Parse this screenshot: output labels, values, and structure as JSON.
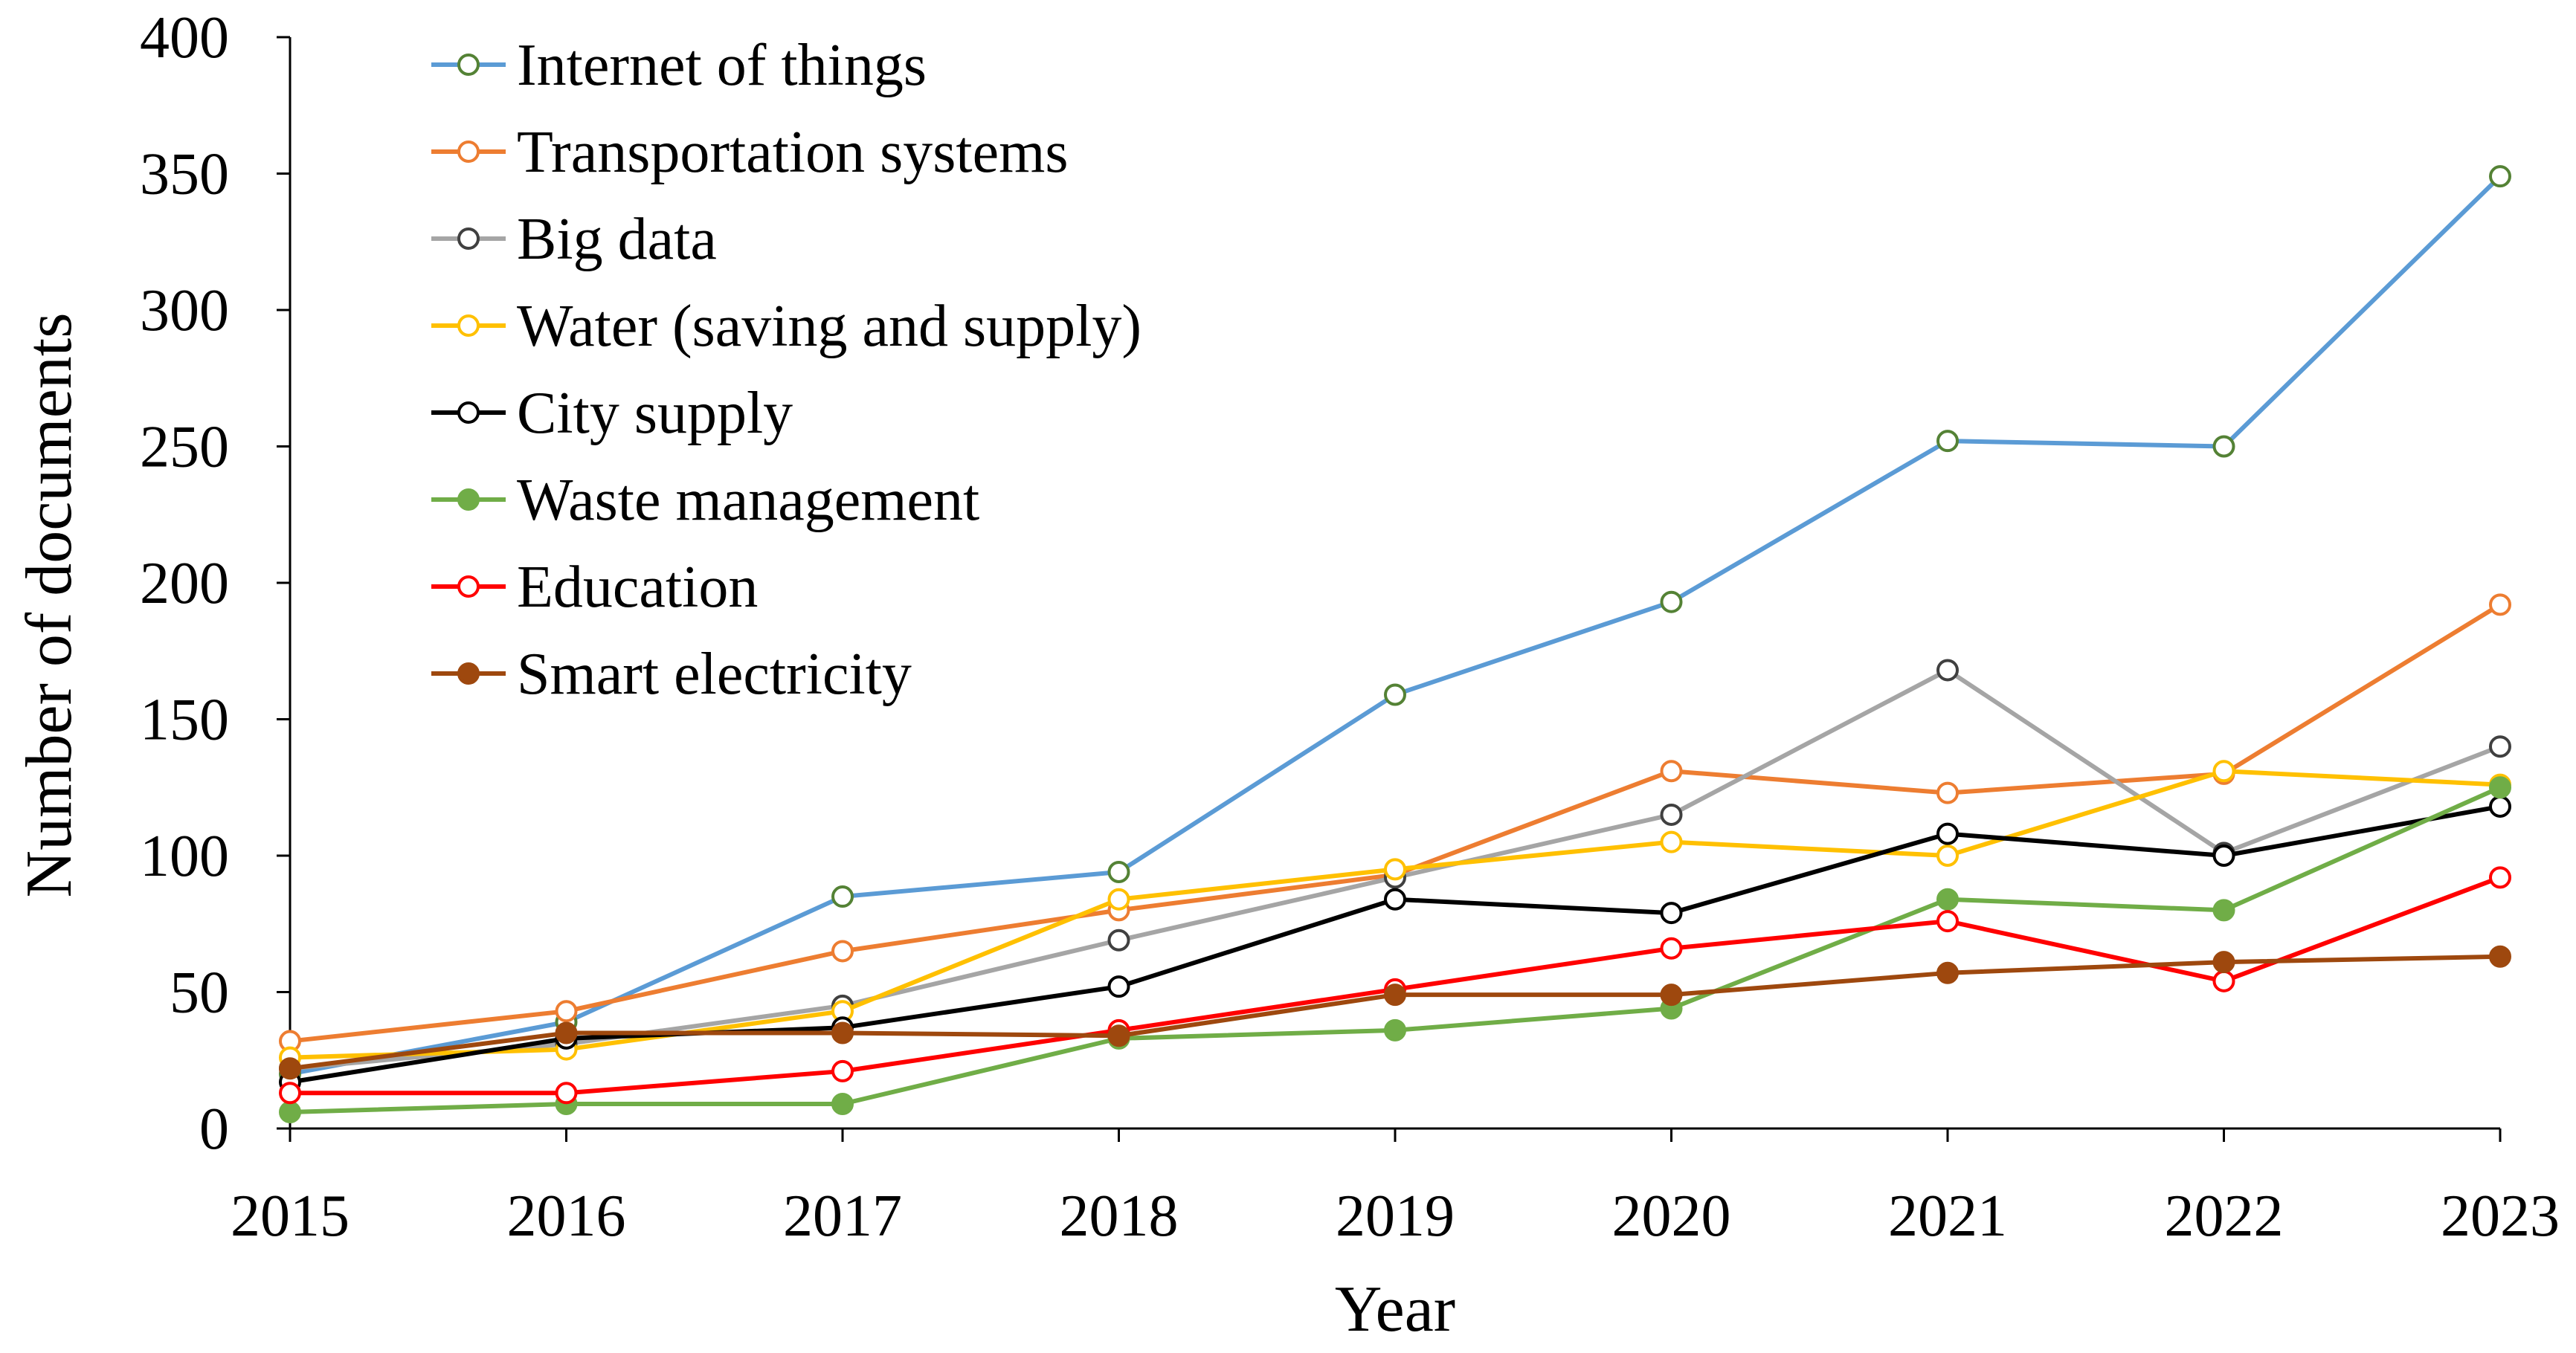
{
  "chart_data": {
    "type": "line",
    "title": "",
    "xlabel": "Year",
    "ylabel": "Number of documents",
    "x": [
      "2015",
      "2016",
      "2017",
      "2018",
      "2019",
      "2020",
      "2021",
      "2022",
      "2023"
    ],
    "ylim": [
      0,
      400
    ],
    "yticks": [
      "0",
      "50",
      "100",
      "150",
      "200",
      "250",
      "300",
      "350",
      "400"
    ],
    "grid": false,
    "legend_position": "top-left",
    "series": [
      {
        "name": "Internet of things",
        "color": "#5b9bd5",
        "marker": "open-circle",
        "marker_color": "#548235",
        "values": [
          20,
          39,
          85,
          94,
          159,
          193,
          252,
          250,
          349
        ]
      },
      {
        "name": "Transportation systems",
        "color": "#ed7d31",
        "marker": "open-circle",
        "marker_color": "#ed7d31",
        "values": [
          32,
          43,
          65,
          80,
          93,
          131,
          123,
          130,
          192
        ]
      },
      {
        "name": "Big data",
        "color": "#a5a5a5",
        "marker": "open-circle",
        "marker_color": "#404040",
        "values": [
          22,
          31,
          45,
          69,
          92,
          115,
          168,
          101,
          140
        ]
      },
      {
        "name": "Water (saving and supply)",
        "color": "#ffc000",
        "marker": "open-circle",
        "marker_color": "#ffc000",
        "values": [
          26,
          29,
          43,
          84,
          95,
          105,
          100,
          131,
          126
        ]
      },
      {
        "name": "City supply",
        "color": "#000000",
        "marker": "open-circle",
        "marker_color": "#000000",
        "values": [
          17,
          33,
          37,
          52,
          84,
          79,
          108,
          100,
          118
        ]
      },
      {
        "name": "Waste management",
        "color": "#70ad47",
        "marker": "filled-circle",
        "marker_color": "#70ad47",
        "values": [
          6,
          9,
          9,
          33,
          36,
          44,
          84,
          80,
          125
        ]
      },
      {
        "name": "Education",
        "color": "#ff0000",
        "marker": "open-circle",
        "marker_color": "#ff0000",
        "values": [
          13,
          13,
          21,
          36,
          51,
          66,
          76,
          54,
          92
        ]
      },
      {
        "name": "Smart electricity",
        "color": "#9e480e",
        "marker": "filled-circle",
        "marker_color": "#9e480e",
        "values": [
          22,
          35,
          35,
          34,
          49,
          49,
          57,
          61,
          63
        ]
      }
    ]
  }
}
